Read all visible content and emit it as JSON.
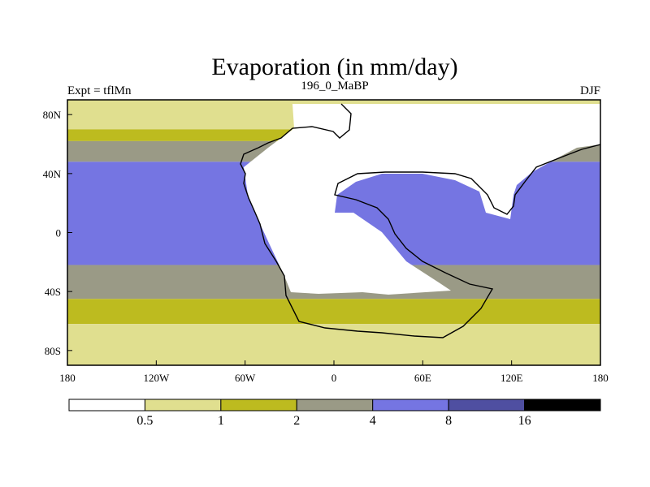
{
  "figure": {
    "title": "Evaporation (in mm/day)",
    "left_label": "Expt = tflMn",
    "center_label": "196_0_MaBP",
    "right_label": "DJF"
  },
  "chart_data": {
    "type": "heatmap",
    "title": "Evaporation (in mm/day)",
    "xlabel": "",
    "ylabel": "",
    "xlim": [
      -180,
      180
    ],
    "ylim": [
      -90,
      90
    ],
    "x_ticks": [
      {
        "value": -180,
        "label": "180"
      },
      {
        "value": -120,
        "label": "120W"
      },
      {
        "value": -60,
        "label": "60W"
      },
      {
        "value": 0,
        "label": "0"
      },
      {
        "value": 60,
        "label": "60E"
      },
      {
        "value": 120,
        "label": "120E"
      },
      {
        "value": 180,
        "label": "180"
      }
    ],
    "y_ticks": [
      {
        "value": 80,
        "label": "80N"
      },
      {
        "value": 40,
        "label": "40N"
      },
      {
        "value": 0,
        "label": "0"
      },
      {
        "value": -40,
        "label": "40S"
      },
      {
        "value": -80,
        "label": "80S"
      }
    ],
    "colorbar": {
      "placement": "bottom",
      "levels": [
        {
          "label": "0.5",
          "value": 0.5
        },
        {
          "label": "1",
          "value": 1
        },
        {
          "label": "2",
          "value": 2
        },
        {
          "label": "4",
          "value": 4
        },
        {
          "label": "8",
          "value": 8
        },
        {
          "label": "16",
          "value": 16
        }
      ],
      "colors": [
        "#ffffff",
        "#e0df8f",
        "#bdbb1f",
        "#9a9a86",
        "#7575e2",
        "#4f4fa1",
        "#000000"
      ]
    },
    "ocean_latitude_bands": [
      {
        "lat_min": 70,
        "lat_max": 90,
        "class": 1
      },
      {
        "lat_min": 62,
        "lat_max": 70,
        "class": 2
      },
      {
        "lat_min": 48,
        "lat_max": 62,
        "class": 3
      },
      {
        "lat_min": -22,
        "lat_max": 48,
        "class": 4
      },
      {
        "lat_min": -45,
        "lat_max": -22,
        "class": 3
      },
      {
        "lat_min": -62,
        "lat_max": -45,
        "class": 2
      },
      {
        "lat_min": -90,
        "lat_max": -62,
        "class": 1
      }
    ],
    "gridlines": false
  }
}
